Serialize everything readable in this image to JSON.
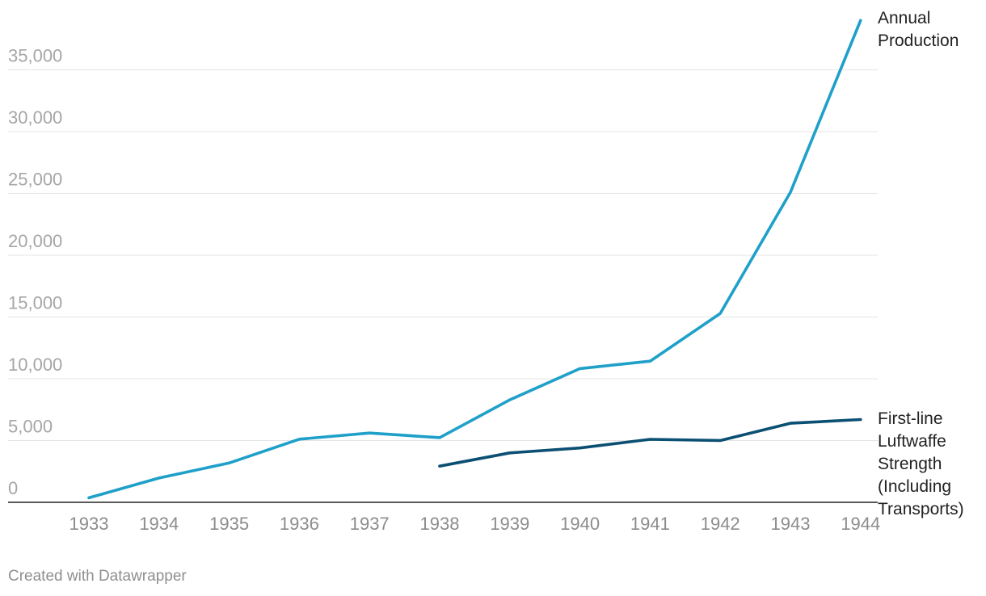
{
  "chart_data": {
    "type": "line",
    "title": "",
    "xlabel": "",
    "ylabel": "",
    "ylim": [
      0,
      39000
    ],
    "yticks": [
      0,
      5000,
      10000,
      15000,
      20000,
      25000,
      30000,
      35000
    ],
    "ytick_labels": [
      "0",
      "5,000",
      "10,000",
      "15,000",
      "20,000",
      "25,000",
      "30,000",
      "35,000"
    ],
    "grid": true,
    "x": [
      "1933",
      "1934",
      "1935",
      "1936",
      "1937",
      "1938",
      "1939",
      "1940",
      "1941",
      "1942",
      "1943",
      "1944"
    ],
    "series": [
      {
        "name": "Annual Production",
        "label_lines": [
          "Annual",
          "Production"
        ],
        "color": "#1fa0c9",
        "values": [
          368,
          1968,
          3183,
          5112,
          5606,
          5235,
          8295,
          10826,
          11424,
          15288,
          25094,
          39000
        ]
      },
      {
        "name": "First-line Luftwaffe Strength (Including Transports)",
        "label_lines": [
          "First-line",
          "Luftwaffe",
          "Strength",
          "(Including",
          "Transports)"
        ],
        "color": "#0b4f73",
        "values": [
          null,
          null,
          null,
          null,
          null,
          2928,
          4000,
          4400,
          5100,
          5000,
          6400,
          6700
        ]
      }
    ]
  },
  "footer": {
    "credit": "Created with Datawrapper"
  }
}
